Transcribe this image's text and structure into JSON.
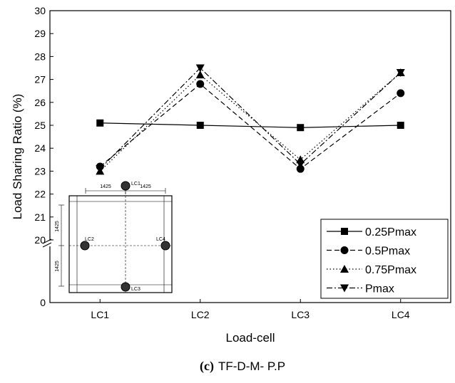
{
  "chart_data": {
    "type": "line",
    "xlabel": "Load-cell",
    "ylabel": "Load Sharing Ratio (%)",
    "categories": [
      "LC1",
      "LC2",
      "LC3",
      "LC4"
    ],
    "ylim": [
      0,
      30
    ],
    "ybreak": 20,
    "yticks": [
      0,
      20,
      21,
      22,
      23,
      24,
      25,
      26,
      27,
      28,
      29,
      30
    ],
    "series": [
      {
        "name": "0.25Pmax",
        "color": "#000000",
        "dash": "solid",
        "marker": "square",
        "values": [
          25.1,
          25.0,
          24.9,
          25.0
        ]
      },
      {
        "name": "0.5Pmax",
        "color": "#000000",
        "dash": "dashed",
        "marker": "circle",
        "values": [
          23.2,
          26.8,
          23.1,
          26.4
        ]
      },
      {
        "name": "0.75Pmax",
        "color": "#000000",
        "dash": "dotted",
        "marker": "triangle-up",
        "values": [
          23.0,
          27.2,
          23.5,
          27.3
        ]
      },
      {
        "name": "Pmax",
        "color": "#000000",
        "dash": "dashdot",
        "marker": "triangle-down",
        "values": [
          23.1,
          27.5,
          23.3,
          27.3
        ]
      }
    ],
    "legend": "lower right"
  },
  "inset": {
    "dimensions": [
      "1425",
      "1425",
      "1425",
      "1425"
    ],
    "labels": [
      "LC1",
      "LC2",
      "LC3",
      "LC4"
    ]
  },
  "caption_label": "(c)",
  "caption": "TF-D-M- P.P"
}
